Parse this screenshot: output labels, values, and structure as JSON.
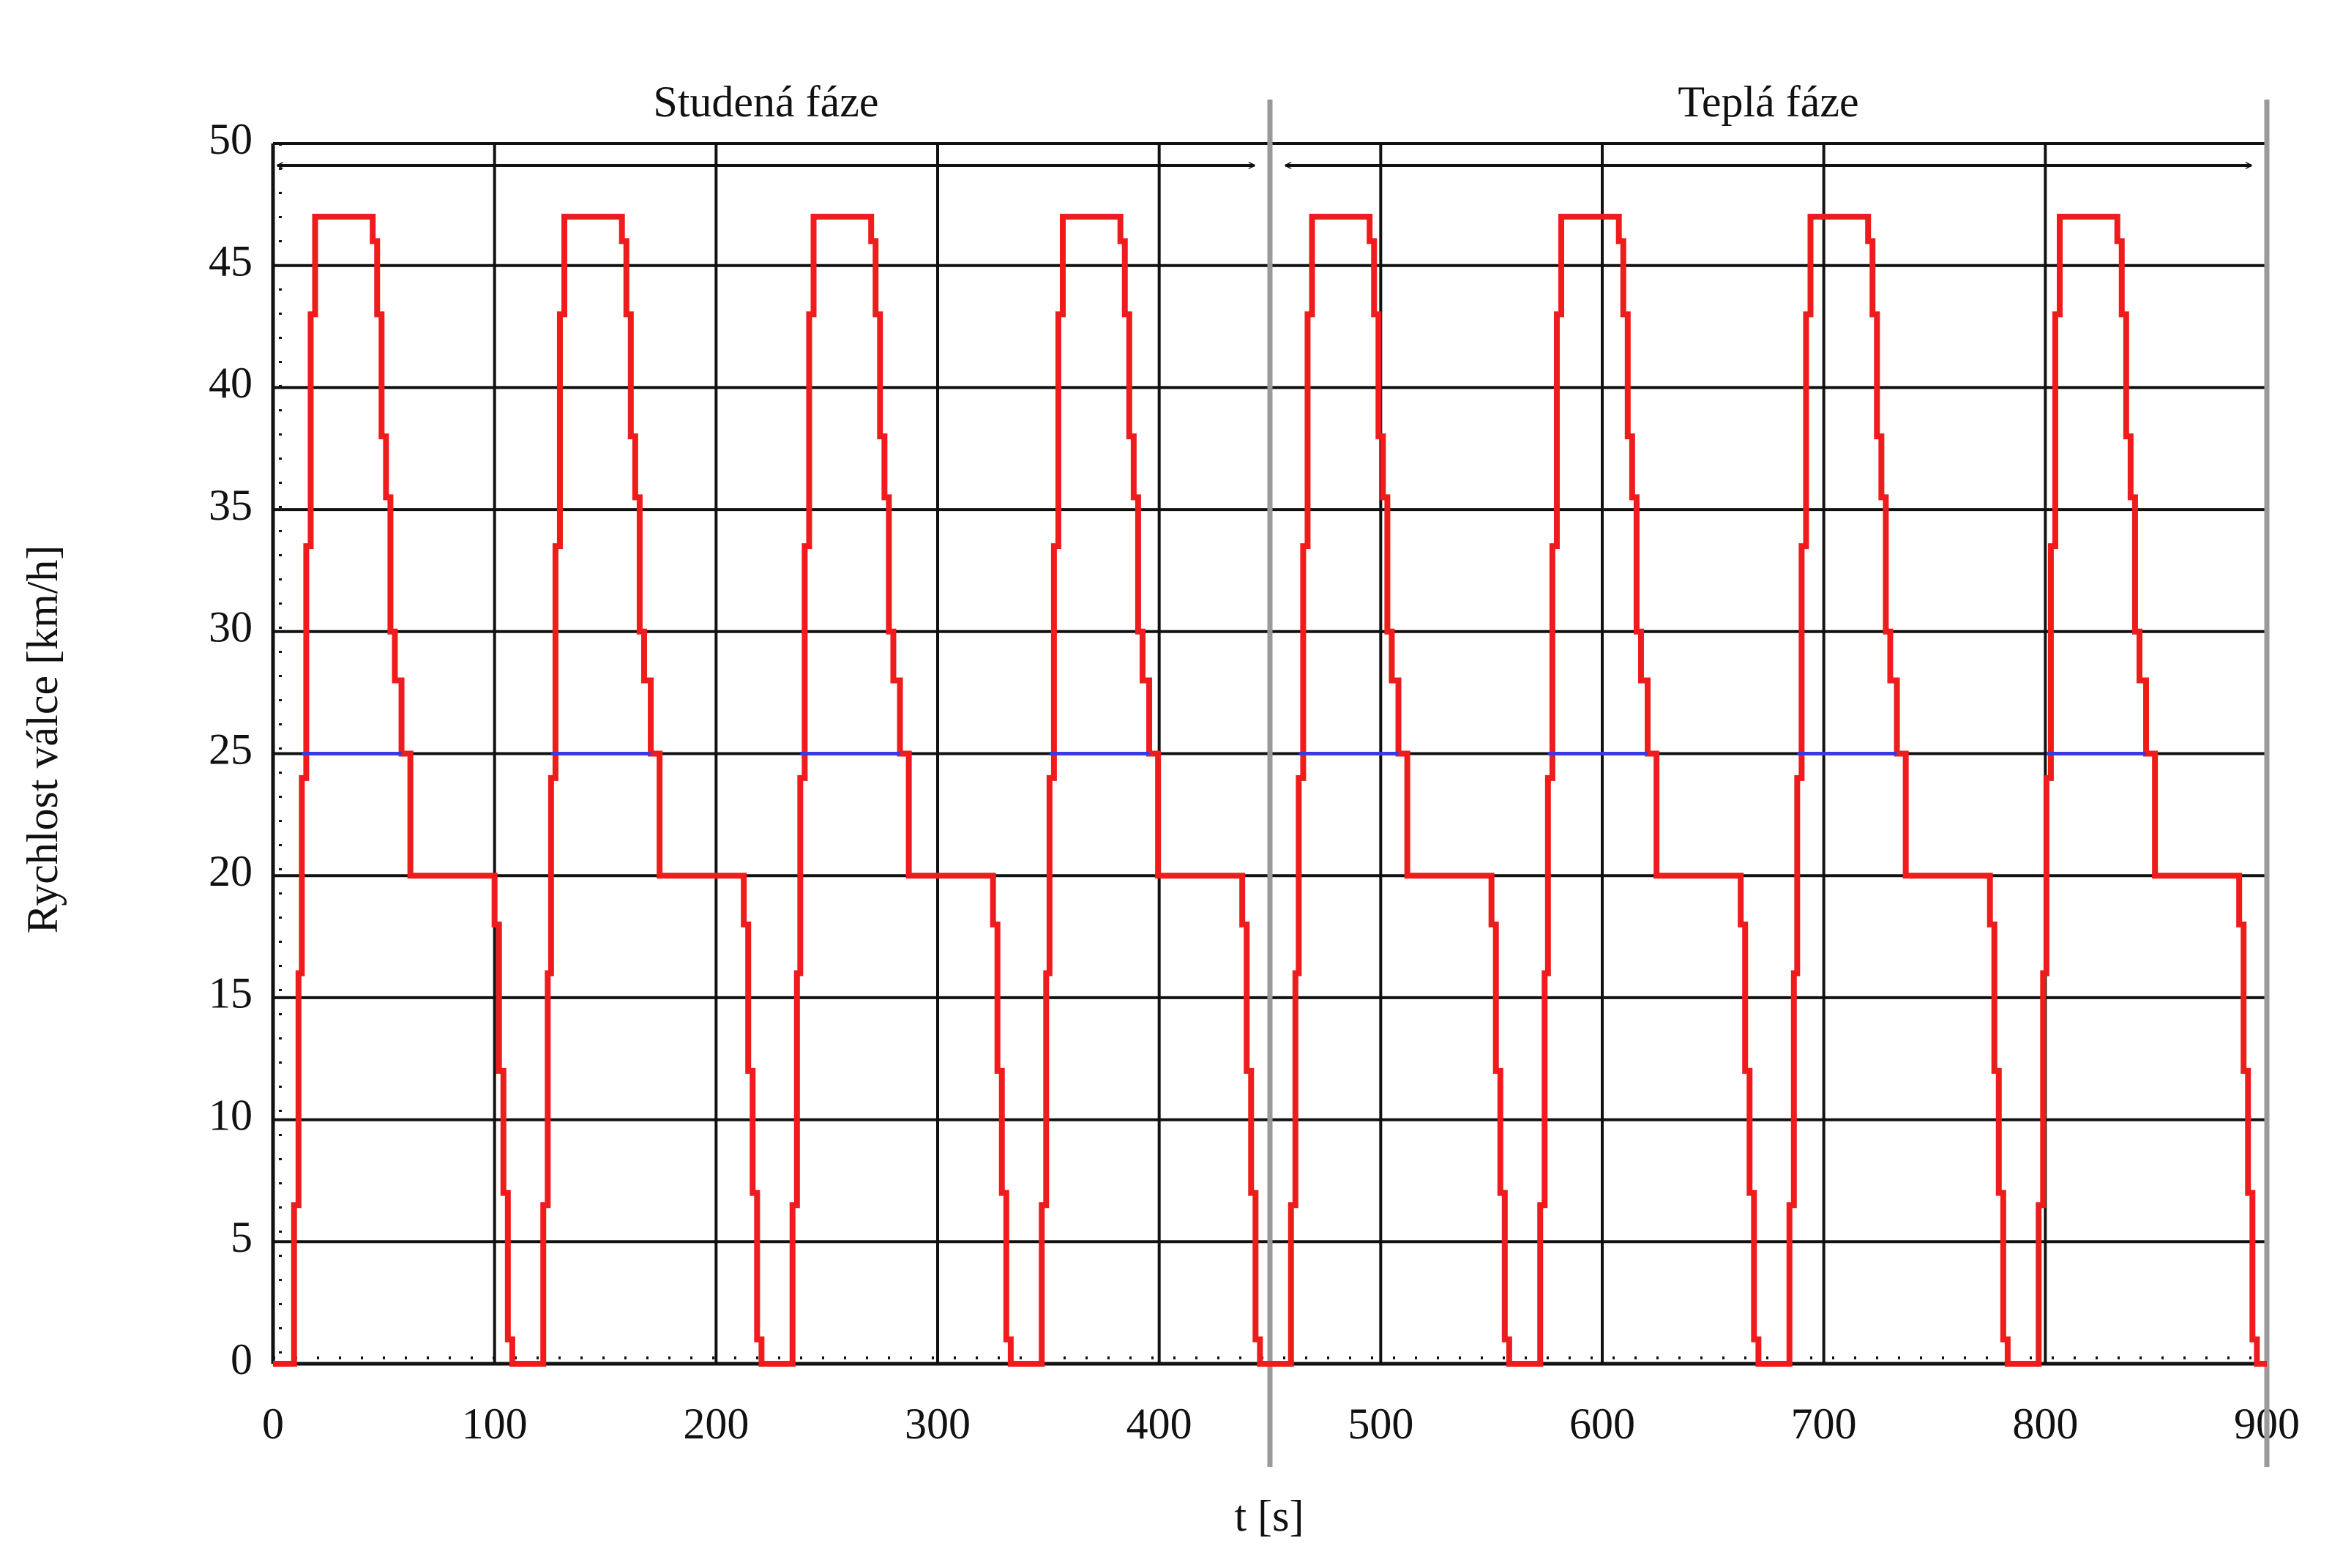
{
  "chart_data": {
    "type": "line",
    "xlabel": "t [s]",
    "ylabel": "Rychlost válce [km/h]",
    "xlim": [
      0,
      900
    ],
    "xticks": [
      0,
      100,
      200,
      300,
      400,
      500,
      600,
      700,
      800,
      900
    ],
    "ylim": [
      0,
      50
    ],
    "yticks": [
      0,
      5,
      10,
      15,
      20,
      25,
      30,
      35,
      40,
      45,
      50
    ],
    "grid": true,
    "phases": [
      {
        "label": "Studená fáze",
        "start": 2,
        "end": 443,
        "boundary": 450
      },
      {
        "label": "Teplá fáze",
        "start": 457,
        "end": 893,
        "boundary": 900
      }
    ],
    "series": [
      {
        "color": "#ee1c1c",
        "x": [
          0,
          9.5,
          9.5,
          11.5,
          11.5,
          13,
          13,
          15,
          15,
          17,
          17,
          19,
          19,
          45,
          45,
          47,
          47,
          49,
          49,
          51,
          51,
          53,
          53,
          55,
          55,
          58,
          58,
          62,
          62,
          100,
          100,
          102,
          102,
          104,
          104,
          106,
          106,
          108,
          108,
          122,
          122,
          124,
          124,
          125.5,
          125.5,
          127.5,
          127.5,
          129.5,
          129.5,
          131.5,
          131.5,
          157.5,
          157.5,
          159.5,
          159.5,
          161.5,
          161.5,
          163.5,
          163.5,
          165.5,
          165.5,
          167.5,
          167.5,
          170.5,
          170.5,
          174.5,
          174.5,
          212.5,
          212.5,
          214.5,
          214.5,
          216.5,
          216.5,
          218.5,
          218.5,
          220.5,
          220.5,
          234.5,
          234.5,
          236.5,
          236.5,
          238,
          238,
          240,
          240,
          242,
          242,
          244,
          244,
          270,
          270,
          272,
          272,
          274,
          274,
          276,
          276,
          278,
          278,
          280,
          280,
          283,
          283,
          287,
          287,
          325,
          325,
          327,
          327,
          329,
          329,
          331,
          331,
          333,
          333,
          347,
          347,
          349,
          349,
          350.5,
          350.5,
          352.5,
          352.5,
          354.5,
          354.5,
          356.5,
          356.5,
          382.5,
          382.5,
          384.5,
          384.5,
          386.5,
          386.5,
          388.5,
          388.5,
          390.5,
          390.5,
          392.5,
          392.5,
          395.5,
          395.5,
          399.5,
          399.5,
          437.5,
          437.5,
          439.5,
          439.5,
          441.5,
          441.5,
          443.5,
          443.5,
          445.5,
          445.5,
          459.5,
          459.5,
          461.5,
          461.5,
          463,
          463,
          465,
          465,
          467,
          467,
          469,
          469,
          495,
          495,
          497,
          497,
          499,
          499,
          501,
          501,
          503,
          503,
          505,
          505,
          508,
          508,
          512,
          512,
          550,
          550,
          552,
          552,
          554,
          554,
          556,
          556,
          558,
          558,
          572,
          572,
          574,
          574,
          575.5,
          575.5,
          577.5,
          577.5,
          579.5,
          579.5,
          581.5,
          581.5,
          607.5,
          607.5,
          609.5,
          609.5,
          611.5,
          611.5,
          613.5,
          613.5,
          615.5,
          615.5,
          617.5,
          617.5,
          620.5,
          620.5,
          624.5,
          624.5,
          662.5,
          662.5,
          664.5,
          664.5,
          666.5,
          666.5,
          668.5,
          668.5,
          670.5,
          670.5,
          684.5,
          684.5,
          686.5,
          686.5,
          688,
          688,
          690,
          690,
          692,
          692,
          694,
          694,
          720,
          720,
          722,
          722,
          724,
          724,
          726,
          726,
          728,
          728,
          730,
          730,
          733,
          733,
          737,
          737,
          775,
          775,
          777,
          777,
          779,
          779,
          781,
          781,
          783,
          783,
          797,
          797,
          799,
          799,
          800.5,
          800.5,
          802.5,
          802.5,
          804.5,
          804.5,
          806.5,
          806.5,
          832.5,
          832.5,
          834.5,
          834.5,
          836.5,
          836.5,
          838.5,
          838.5,
          840.5,
          840.5,
          842.5,
          842.5,
          845.5,
          845.5,
          849.5,
          849.5,
          887.5,
          887.5,
          889.5,
          889.5,
          891.5,
          891.5,
          893.5,
          893.5,
          895.5,
          895.5,
          900
        ],
        "values": [
          0,
          0,
          6.5,
          6.5,
          16,
          16,
          24,
          24,
          33.5,
          33.5,
          43,
          43,
          47,
          47,
          46,
          46,
          43,
          43,
          38,
          38,
          35.5,
          35.5,
          30,
          30,
          28,
          28,
          25,
          25,
          20,
          20,
          18,
          18,
          12,
          12,
          7,
          7,
          1,
          1,
          0,
          0,
          6.5,
          6.5,
          16,
          16,
          24,
          24,
          33.5,
          33.5,
          43,
          43,
          47,
          47,
          46,
          46,
          43,
          43,
          38,
          38,
          35.5,
          35.5,
          30,
          30,
          28,
          28,
          25,
          25,
          20,
          20,
          18,
          18,
          12,
          12,
          7,
          7,
          1,
          1,
          0,
          0,
          6.5,
          6.5,
          16,
          16,
          24,
          24,
          33.5,
          33.5,
          43,
          43,
          47,
          47,
          46,
          46,
          43,
          43,
          38,
          38,
          35.5,
          35.5,
          30,
          30,
          28,
          28,
          25,
          25,
          20,
          20,
          18,
          18,
          12,
          12,
          7,
          7,
          1,
          1,
          0,
          0,
          6.5,
          6.5,
          16,
          16,
          24,
          24,
          33.5,
          33.5,
          43,
          43,
          47,
          47,
          46,
          46,
          43,
          43,
          38,
          38,
          35.5,
          35.5,
          30,
          30,
          28,
          28,
          25,
          25,
          20,
          20,
          18,
          18,
          12,
          12,
          7,
          7,
          1,
          1,
          0,
          0,
          6.5,
          6.5,
          16,
          16,
          24,
          24,
          33.5,
          33.5,
          43,
          43,
          47,
          47,
          46,
          46,
          43,
          43,
          38,
          38,
          35.5,
          35.5,
          30,
          30,
          28,
          28,
          25,
          25,
          20,
          20,
          18,
          18,
          12,
          12,
          7,
          7,
          1,
          1,
          0,
          0,
          6.5,
          6.5,
          16,
          16,
          24,
          24,
          33.5,
          33.5,
          43,
          43,
          47,
          47,
          46,
          46,
          43,
          43,
          38,
          38,
          35.5,
          35.5,
          30,
          30,
          28,
          28,
          25,
          25,
          20,
          20,
          18,
          18,
          12,
          12,
          7,
          7,
          1,
          1,
          0,
          0,
          6.5,
          6.5,
          16,
          16,
          24,
          24,
          33.5,
          33.5,
          43,
          43,
          47,
          47,
          46,
          46,
          43,
          43,
          38,
          38,
          35.5,
          35.5,
          30,
          30,
          28,
          28,
          25,
          25,
          20,
          20,
          18,
          18,
          12,
          12,
          7,
          7,
          1,
          1,
          0,
          0,
          6.5,
          6.5,
          16,
          16,
          24,
          24,
          33.5,
          33.5,
          43,
          43,
          47,
          47,
          46,
          46,
          43,
          43,
          38,
          38,
          35.5,
          35.5,
          30,
          30,
          28,
          28,
          25,
          25,
          20,
          20,
          18,
          18,
          12,
          12,
          7,
          7,
          1,
          1,
          0,
          0
        ]
      },
      {
        "color": "#3a3ae0",
        "x": [
          13,
          58,
          100,
          125.5,
          170.5,
          212.5,
          238,
          283,
          325,
          350.5,
          395.5,
          437.5,
          463,
          508,
          550,
          575.5,
          620.5,
          662.5,
          688,
          733,
          775,
          800.5,
          845.5
        ],
        "values": [
          25,
          25,
          null,
          25,
          25,
          null,
          25,
          25,
          null,
          25,
          25,
          null,
          25,
          25,
          null,
          25,
          25,
          null,
          25,
          25,
          null,
          25,
          25
        ]
      }
    ]
  }
}
